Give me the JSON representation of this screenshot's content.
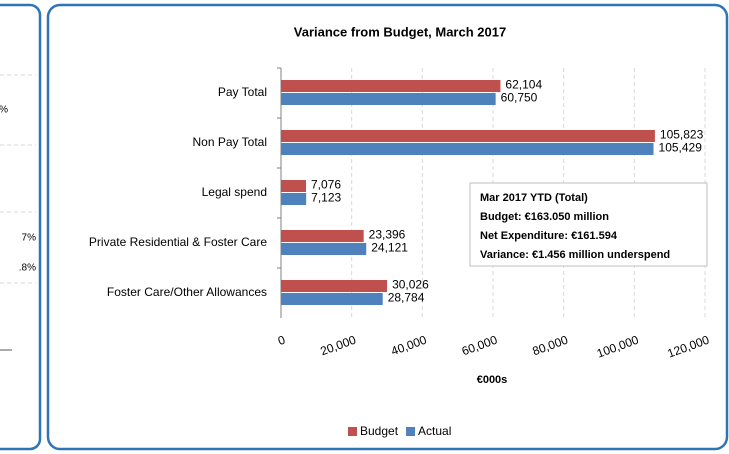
{
  "chart_data": {
    "type": "hbar",
    "title": "Variance from Budget, March 2017",
    "categories": [
      "Pay  Total",
      "Non Pay Total",
      "Legal spend",
      "Private Residential & Foster Care",
      "Foster Care/Other Allowances"
    ],
    "series": [
      {
        "name": "Budget",
        "color": "#c0504d",
        "values": [
          62104,
          105823,
          7076,
          23396,
          30026
        ],
        "value_labels": [
          "62,104",
          "105,823",
          "7,076",
          "23,396",
          "30,026"
        ]
      },
      {
        "name": "Actual",
        "color": "#4f81bd",
        "values": [
          60750,
          105429,
          7123,
          24121,
          28784
        ],
        "value_labels": [
          "60,750",
          "105,429",
          "7,123",
          "24,121",
          "28,784"
        ]
      }
    ],
    "xlim": [
      0,
      120000
    ],
    "xticks": [
      0,
      {
        "value": 20000,
        "label": "20,000"
      },
      {
        "value": 40000,
        "label": "40,000"
      },
      {
        "value": 60000,
        "label": "60,000"
      },
      {
        "value": 80000,
        "label": "80,000"
      },
      {
        "value": 100000,
        "label": "100,000"
      },
      {
        "value": 120000,
        "label": "120,000"
      }
    ],
    "xlabel": "€000s",
    "grid": true,
    "legend": "bottom",
    "annotation": {
      "title": "Mar 2017 YTD (Total)",
      "lines": [
        "Budget: €163.050 million",
        "Net Expenditure: €161.594",
        "Variance: €1.456 million underspend"
      ]
    }
  },
  "left_panel": {
    "labels": [
      "%",
      "7%",
      ".8%"
    ]
  }
}
